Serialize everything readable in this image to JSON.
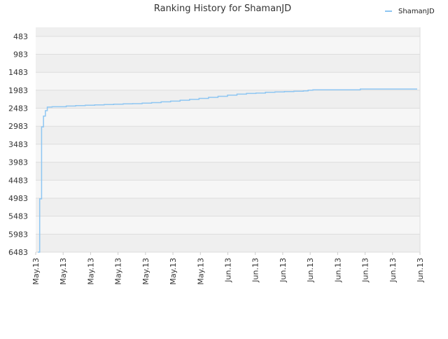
{
  "chart_data": {
    "type": "line",
    "title": "Ranking History for ShamanJD",
    "xlabel": "",
    "ylabel": "",
    "y_reversed": true,
    "ylim": [
      483,
      6483
    ],
    "y_ticks": [
      "483",
      "983",
      "1483",
      "1983",
      "2483",
      "2983",
      "3483",
      "3983",
      "4483",
      "4983",
      "5483",
      "5983",
      "6483"
    ],
    "x_ticks": [
      "May.13",
      "May.13",
      "May.13",
      "May.13",
      "May.13",
      "May.13",
      "May.13",
      "Jun.13",
      "Jun.13",
      "Jun.13",
      "Jun.13",
      "Jun.13",
      "Jun.13",
      "Jun.13",
      "Jun.13"
    ],
    "grid": true,
    "legend": "top-right",
    "series": [
      {
        "name": "ShamanJD",
        "color": "#8ec6f2",
        "x": [
          0,
          0.2,
          0.4,
          0.6,
          0.8,
          1.0,
          1.5,
          2,
          3,
          4,
          5,
          6,
          7,
          8,
          9,
          10,
          11,
          12,
          13,
          14,
          15,
          16,
          17,
          18,
          19,
          20,
          21,
          22,
          23,
          24,
          25,
          26,
          27,
          28,
          28.5,
          29,
          30,
          31,
          32,
          33,
          34,
          35,
          36,
          37,
          38,
          39,
          40
        ],
        "values": [
          6483,
          5000,
          3000,
          2700,
          2550,
          2450,
          2440,
          2440,
          2420,
          2410,
          2400,
          2390,
          2380,
          2370,
          2360,
          2355,
          2340,
          2325,
          2305,
          2285,
          2260,
          2235,
          2210,
          2180,
          2150,
          2120,
          2090,
          2070,
          2060,
          2040,
          2030,
          2020,
          2010,
          2000,
          1980,
          1970,
          1970,
          1970,
          1970,
          1970,
          1950,
          1950,
          1950,
          1950,
          1950,
          1950,
          1950
        ]
      }
    ]
  }
}
